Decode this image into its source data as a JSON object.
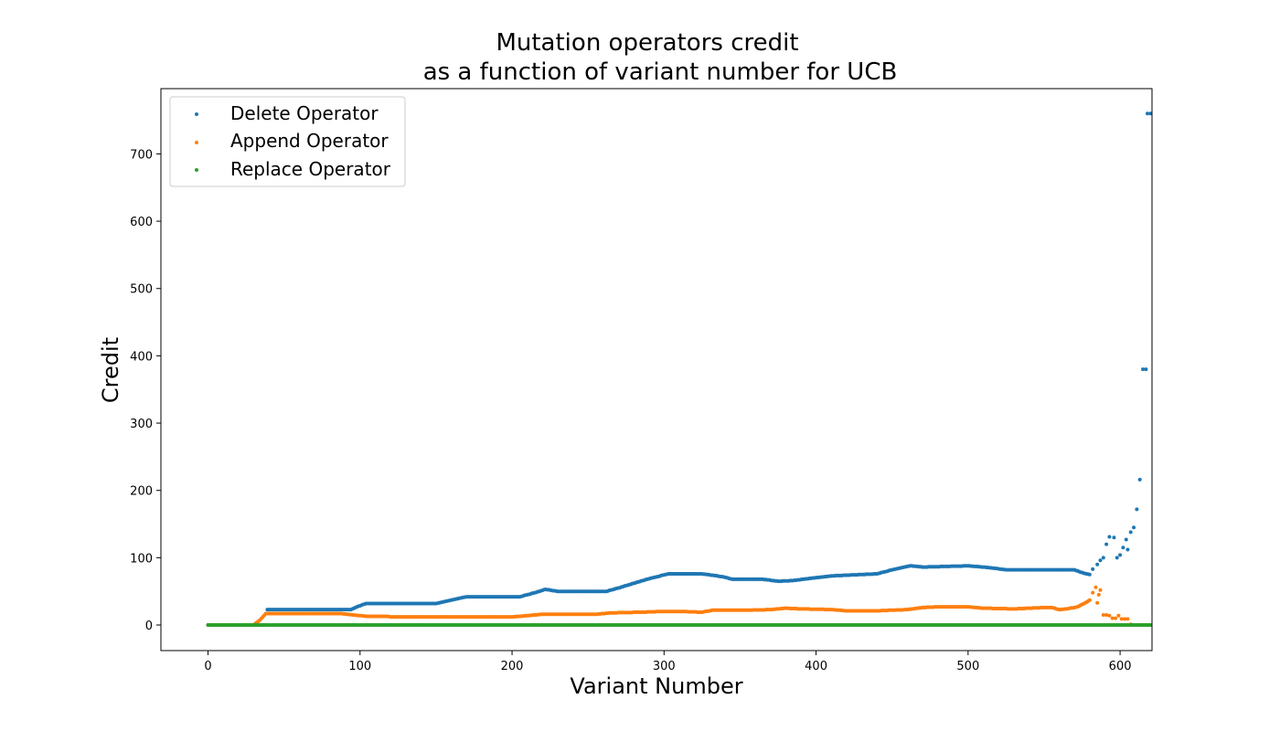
{
  "chart_data": {
    "type": "scatter",
    "title_line1": "Mutation operators credit",
    "title_line2": "as a function of variant number for UCB",
    "xlabel": "Variant Number",
    "ylabel": "Credit",
    "xlim": [
      -31,
      621
    ],
    "ylim": [
      -38,
      797
    ],
    "xticks": [
      0,
      100,
      200,
      300,
      400,
      500,
      600
    ],
    "yticks": [
      0,
      100,
      200,
      300,
      400,
      500,
      600,
      700
    ],
    "grid": false,
    "legend_position": "top-left",
    "series": [
      {
        "name": "Delete Operator",
        "color": "#1f77b4",
        "keypoints": [
          [
            0,
            0
          ],
          [
            38,
            0
          ],
          [
            39,
            23
          ],
          [
            94,
            23
          ],
          [
            98,
            27
          ],
          [
            104,
            32
          ],
          [
            150,
            32
          ],
          [
            160,
            37
          ],
          [
            170,
            42
          ],
          [
            205,
            42
          ],
          [
            215,
            48
          ],
          [
            222,
            53
          ],
          [
            230,
            50
          ],
          [
            262,
            50
          ],
          [
            270,
            55
          ],
          [
            280,
            62
          ],
          [
            292,
            70
          ],
          [
            303,
            76
          ],
          [
            325,
            76
          ],
          [
            335,
            73
          ],
          [
            340,
            71
          ],
          [
            345,
            68
          ],
          [
            365,
            68
          ],
          [
            375,
            65
          ],
          [
            385,
            66
          ],
          [
            395,
            69
          ],
          [
            410,
            73
          ],
          [
            440,
            76
          ],
          [
            450,
            82
          ],
          [
            462,
            88
          ],
          [
            470,
            86
          ],
          [
            500,
            88
          ],
          [
            515,
            85
          ],
          [
            525,
            82
          ],
          [
            570,
            82
          ],
          [
            576,
            77
          ],
          [
            580,
            75
          ]
        ],
        "tail": [
          [
            582,
            83
          ],
          [
            585,
            90
          ],
          [
            587,
            96
          ],
          [
            589,
            100
          ],
          [
            591,
            120
          ],
          [
            593,
            131
          ],
          [
            596,
            130
          ],
          [
            598,
            100
          ],
          [
            600,
            104
          ],
          [
            602,
            115
          ],
          [
            604,
            127
          ],
          [
            605,
            112
          ],
          [
            607,
            138
          ],
          [
            609,
            145
          ],
          [
            611,
            172
          ],
          [
            613,
            216
          ],
          [
            615,
            380
          ],
          [
            617,
            380
          ],
          [
            618,
            760
          ],
          [
            620,
            760
          ]
        ]
      },
      {
        "name": "Append Operator",
        "color": "#ff7f0e",
        "keypoints": [
          [
            0,
            0
          ],
          [
            30,
            0
          ],
          [
            34,
            7
          ],
          [
            38,
            17
          ],
          [
            88,
            17
          ],
          [
            95,
            15
          ],
          [
            105,
            13
          ],
          [
            118,
            13
          ],
          [
            120,
            12
          ],
          [
            155,
            12
          ],
          [
            160,
            12
          ],
          [
            200,
            12
          ],
          [
            210,
            14
          ],
          [
            220,
            16
          ],
          [
            255,
            16
          ],
          [
            265,
            18
          ],
          [
            285,
            19
          ],
          [
            298,
            20
          ],
          [
            312,
            20
          ],
          [
            325,
            19
          ],
          [
            332,
            22
          ],
          [
            355,
            22
          ],
          [
            370,
            23
          ],
          [
            380,
            25
          ],
          [
            390,
            24
          ],
          [
            410,
            23
          ],
          [
            420,
            21
          ],
          [
            440,
            21
          ],
          [
            450,
            22
          ],
          [
            460,
            23
          ],
          [
            470,
            26
          ],
          [
            480,
            27
          ],
          [
            500,
            27
          ],
          [
            510,
            25
          ],
          [
            530,
            24
          ],
          [
            550,
            26
          ],
          [
            555,
            26
          ],
          [
            560,
            23
          ],
          [
            565,
            24
          ],
          [
            572,
            27
          ],
          [
            578,
            34
          ],
          [
            580,
            37
          ]
        ],
        "tail": [
          [
            582,
            48
          ],
          [
            584,
            56
          ],
          [
            585,
            33
          ],
          [
            586,
            45
          ],
          [
            587,
            52
          ],
          [
            589,
            15
          ],
          [
            591,
            15
          ],
          [
            593,
            14
          ],
          [
            595,
            10
          ],
          [
            597,
            10
          ],
          [
            599,
            14
          ],
          [
            601,
            9
          ],
          [
            603,
            9
          ],
          [
            605,
            9
          ],
          [
            607,
            1
          ],
          [
            609,
            0
          ],
          [
            611,
            0
          ],
          [
            613,
            0
          ],
          [
            615,
            0
          ],
          [
            617,
            0
          ],
          [
            619,
            0
          ]
        ]
      },
      {
        "name": "Replace Operator",
        "color": "#2ca02c",
        "keypoints": [
          [
            0,
            0
          ],
          [
            620,
            0
          ]
        ],
        "tail": []
      }
    ]
  }
}
